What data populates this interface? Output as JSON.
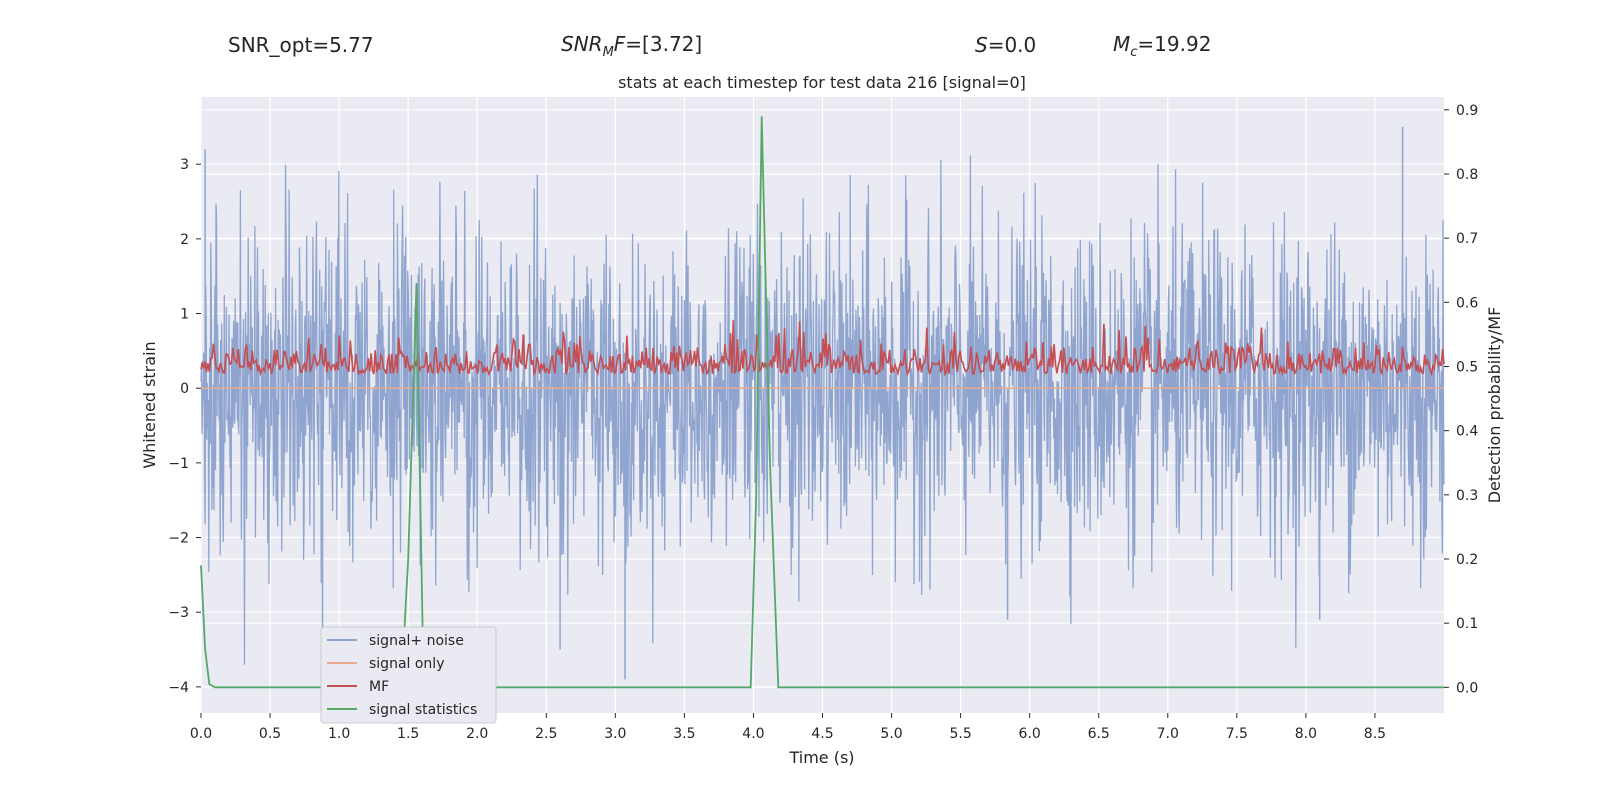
{
  "header": {
    "snr_opt": "SNR_opt=5.77",
    "snr_mf_main": "SNR",
    "snr_mf_sub": "M",
    "snr_mf_tail": "F",
    "snr_mf_value": "=[3.72]",
    "s_var": "S",
    "s_value": "=0.0",
    "mc_var": "M",
    "mc_sub": "c",
    "mc_value": "=19.92"
  },
  "chart_data": {
    "type": "line",
    "title": "stats at each timestep for test data 216 [signal=0]",
    "xlabel": "Time (s)",
    "ylabel": "Whitened strain",
    "y2label": "Detection probability/MF",
    "xlim": [
      0.0,
      9.0
    ],
    "ylim": [
      -4.35,
      3.9
    ],
    "y2lim": [
      -0.04,
      0.92
    ],
    "xticks": [
      "0.0",
      "0.5",
      "1.0",
      "1.5",
      "2.0",
      "2.5",
      "3.0",
      "3.5",
      "4.0",
      "4.5",
      "5.0",
      "5.5",
      "6.0",
      "6.5",
      "7.0",
      "7.5",
      "8.0",
      "8.5"
    ],
    "yticks": [
      "3",
      "2",
      "1",
      "0",
      "−1",
      "−2",
      "−3",
      "−4"
    ],
    "y2ticks": [
      "0.9",
      "0.8",
      "0.7",
      "0.6",
      "0.5",
      "0.4",
      "0.3",
      "0.2",
      "0.1",
      "0.0"
    ],
    "grid": true,
    "legend_position": "lower-left",
    "legend": [
      "signal+ noise",
      "signal only",
      "MF",
      "signal statistics"
    ],
    "colors": {
      "noise": "#8fa5cf",
      "signal_only": "#e8a98d",
      "mf": "#c44e52",
      "stat": "#55a868",
      "plot_bg": "#eaeaf2",
      "grid": "#ffffff"
    },
    "series": [
      {
        "name": "signal+ noise",
        "axis": "left",
        "description_points": "dense noise, approx. gaussian std ~1.0, peaks from about -4.0 to +3.5",
        "notable_peaks": [
          [
            0.03,
            3.2
          ],
          [
            0.88,
            -4.0
          ],
          [
            5.84,
            -3.1
          ],
          [
            8.7,
            3.5
          ],
          [
            8.1,
            -3.1
          ],
          [
            2.6,
            -3.5
          ],
          [
            3.07,
            -3.9
          ]
        ]
      },
      {
        "name": "signal only",
        "axis": "left",
        "x": [
          0.0,
          9.0
        ],
        "values": [
          0.0,
          0.0
        ]
      },
      {
        "name": "MF",
        "axis": "right",
        "baseline": 0.5,
        "range": [
          0.475,
          0.6
        ]
      },
      {
        "name": "signal statistics",
        "axis": "right",
        "x": [
          0.0,
          0.03,
          0.06,
          0.1,
          1.45,
          1.5,
          1.56,
          1.61,
          1.66,
          3.98,
          4.02,
          4.06,
          4.12,
          4.18,
          9.0
        ],
        "values": [
          0.19,
          0.06,
          0.005,
          0.0,
          0.0,
          0.2,
          0.63,
          0.02,
          0.0,
          0.0,
          0.3,
          0.89,
          0.35,
          0.0,
          0.0
        ]
      }
    ]
  }
}
